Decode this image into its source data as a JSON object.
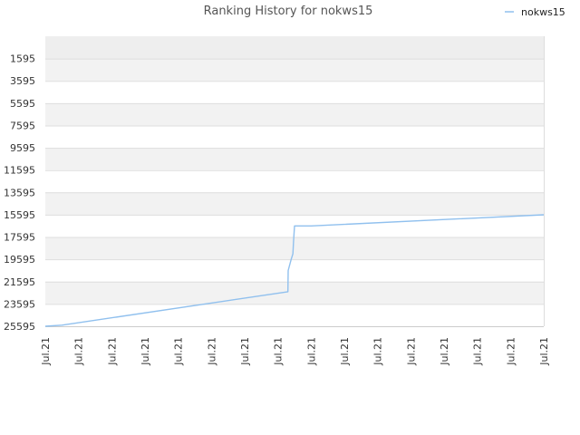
{
  "chart_data": {
    "type": "line",
    "title": "Ranking History for nokws15",
    "legend_position": "top-right",
    "y_inverted": true,
    "ylim": [
      -405,
      25595
    ],
    "y_tick_values": [
      1595,
      3595,
      5595,
      7595,
      9595,
      11595,
      13595,
      15595,
      17595,
      19595,
      21595,
      23595,
      25595
    ],
    "y_tick_labels": [
      "1595",
      "3595",
      "5595",
      "7595",
      "9595",
      "11595",
      "13595",
      "15595",
      "17595",
      "19595",
      "21595",
      "23595",
      "25595"
    ],
    "x_tick_labels": [
      "Jul.21",
      "Jul.21",
      "Jul.21",
      "Jul.21",
      "Jul.21",
      "Jul.21",
      "Jul.21",
      "Jul.21",
      "Jul.21",
      "Jul.21",
      "Jul.21",
      "Jul.21",
      "Jul.21",
      "Jul.21",
      "Jul.21",
      "Jul.21"
    ],
    "xlim": [
      0,
      15
    ],
    "grid": true,
    "colors": {
      "line": "#90c0ee",
      "band_a": "#f2f2f2",
      "band_b": "#ffffff",
      "band_top": "#eeeeee",
      "grid": "#dddddd"
    },
    "series": [
      {
        "name": "nokws15",
        "x": [
          0.0,
          0.5,
          7.3,
          7.31,
          7.4,
          7.45,
          7.47,
          7.5,
          8.0,
          15.0
        ],
        "y": [
          25595,
          25500,
          22500,
          20600,
          19600,
          19100,
          18000,
          16600,
          16600,
          15605
        ]
      }
    ]
  }
}
